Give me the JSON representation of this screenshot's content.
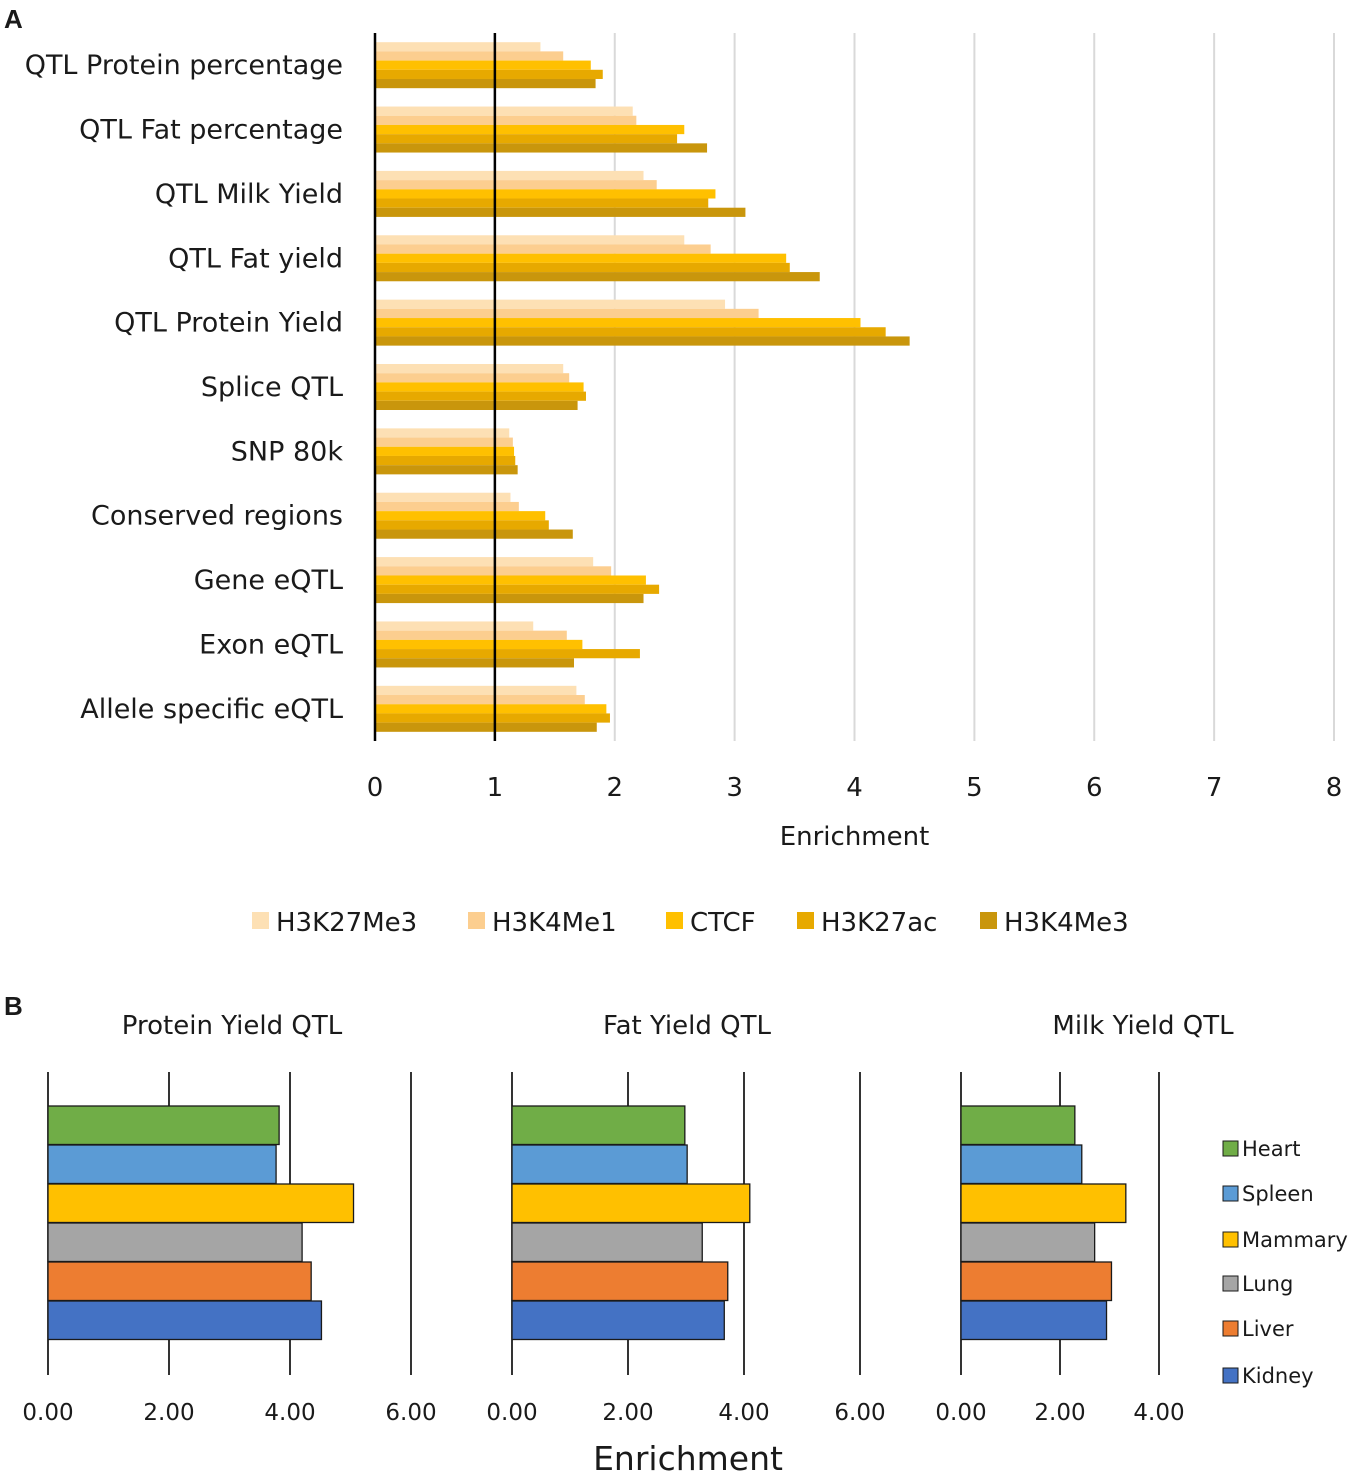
{
  "panel_labels": [
    "A",
    "B"
  ],
  "colors": {
    "H3K27Me3": "#fde0b4",
    "H3K4Me1": "#fcce8f",
    "CTCF": "#ffc000",
    "H3K27ac": "#e7a900",
    "H3K4Me3": "#c9960c",
    "Heart": "#70ad47",
    "Spleen": "#5b9bd5",
    "Mammary": "#ffc000",
    "Lung": "#a5a5a5",
    "Liver": "#ed7d31",
    "Kidney": "#4472c4",
    "grid": "#d9d9d9",
    "axis": "#000000"
  },
  "chart_data": [
    {
      "type": "bar",
      "orientation": "horizontal",
      "panel": "A",
      "title": "",
      "xlabel": "Enrichment",
      "ylabel": "",
      "xlim": [
        0,
        8
      ],
      "xticks": [
        "0",
        "1",
        "2",
        "3",
        "4",
        "5",
        "6",
        "7",
        "8"
      ],
      "reference_line": 1,
      "legend_position": "bottom",
      "categories": [
        "QTL Protein percentage",
        "QTL Fat percentage",
        "QTL Milk Yield",
        "QTL Fat yield",
        "QTL Protein Yield",
        "Splice QTL",
        "SNP 80k",
        "Conserved regions",
        "Gene eQTL",
        "Exon eQTL",
        "Allele specific eQTL"
      ],
      "series": [
        {
          "name": "H3K27Me3",
          "values": [
            1.38,
            2.15,
            2.24,
            2.58,
            2.92,
            1.57,
            1.12,
            1.13,
            1.82,
            1.32,
            1.68
          ]
        },
        {
          "name": "H3K4Me1",
          "values": [
            1.57,
            2.18,
            2.35,
            2.8,
            3.2,
            1.62,
            1.15,
            1.2,
            1.97,
            1.6,
            1.75
          ]
        },
        {
          "name": "CTCF",
          "values": [
            1.8,
            2.58,
            2.84,
            3.43,
            4.05,
            1.74,
            1.16,
            1.42,
            2.26,
            1.73,
            1.93
          ]
        },
        {
          "name": "H3K27ac",
          "values": [
            1.9,
            2.52,
            2.78,
            3.46,
            4.26,
            1.76,
            1.17,
            1.45,
            2.37,
            2.21,
            1.96
          ]
        },
        {
          "name": "H3K4Me3",
          "values": [
            1.84,
            2.77,
            3.09,
            3.71,
            4.46,
            1.69,
            1.19,
            1.65,
            2.24,
            1.66,
            1.85
          ]
        }
      ]
    },
    {
      "type": "bar",
      "orientation": "horizontal",
      "panel": "B",
      "shared_xlabel": "Enrichment",
      "legend_position": "right",
      "tissues": [
        "Heart",
        "Spleen",
        "Mammary",
        "Lung",
        "Liver",
        "Kidney"
      ],
      "subcharts": [
        {
          "title": "Protein Yield QTL",
          "xlim": [
            0,
            6
          ],
          "xticks": [
            "0.00",
            "2.00",
            "4.00",
            "6.00"
          ],
          "values": [
            3.82,
            3.77,
            5.05,
            4.2,
            4.35,
            4.52
          ]
        },
        {
          "title": "Fat Yield QTL",
          "xlim": [
            0,
            6
          ],
          "xticks": [
            "0.00",
            "2.00",
            "4.00",
            "6.00"
          ],
          "values": [
            2.98,
            3.02,
            4.1,
            3.28,
            3.72,
            3.66
          ]
        },
        {
          "title": "Milk Yield QTL",
          "xlim": [
            0,
            4
          ],
          "xticks": [
            "0.00",
            "2.00",
            "4.00"
          ],
          "values": [
            2.3,
            2.44,
            3.33,
            2.7,
            3.04,
            2.94
          ]
        }
      ]
    }
  ]
}
